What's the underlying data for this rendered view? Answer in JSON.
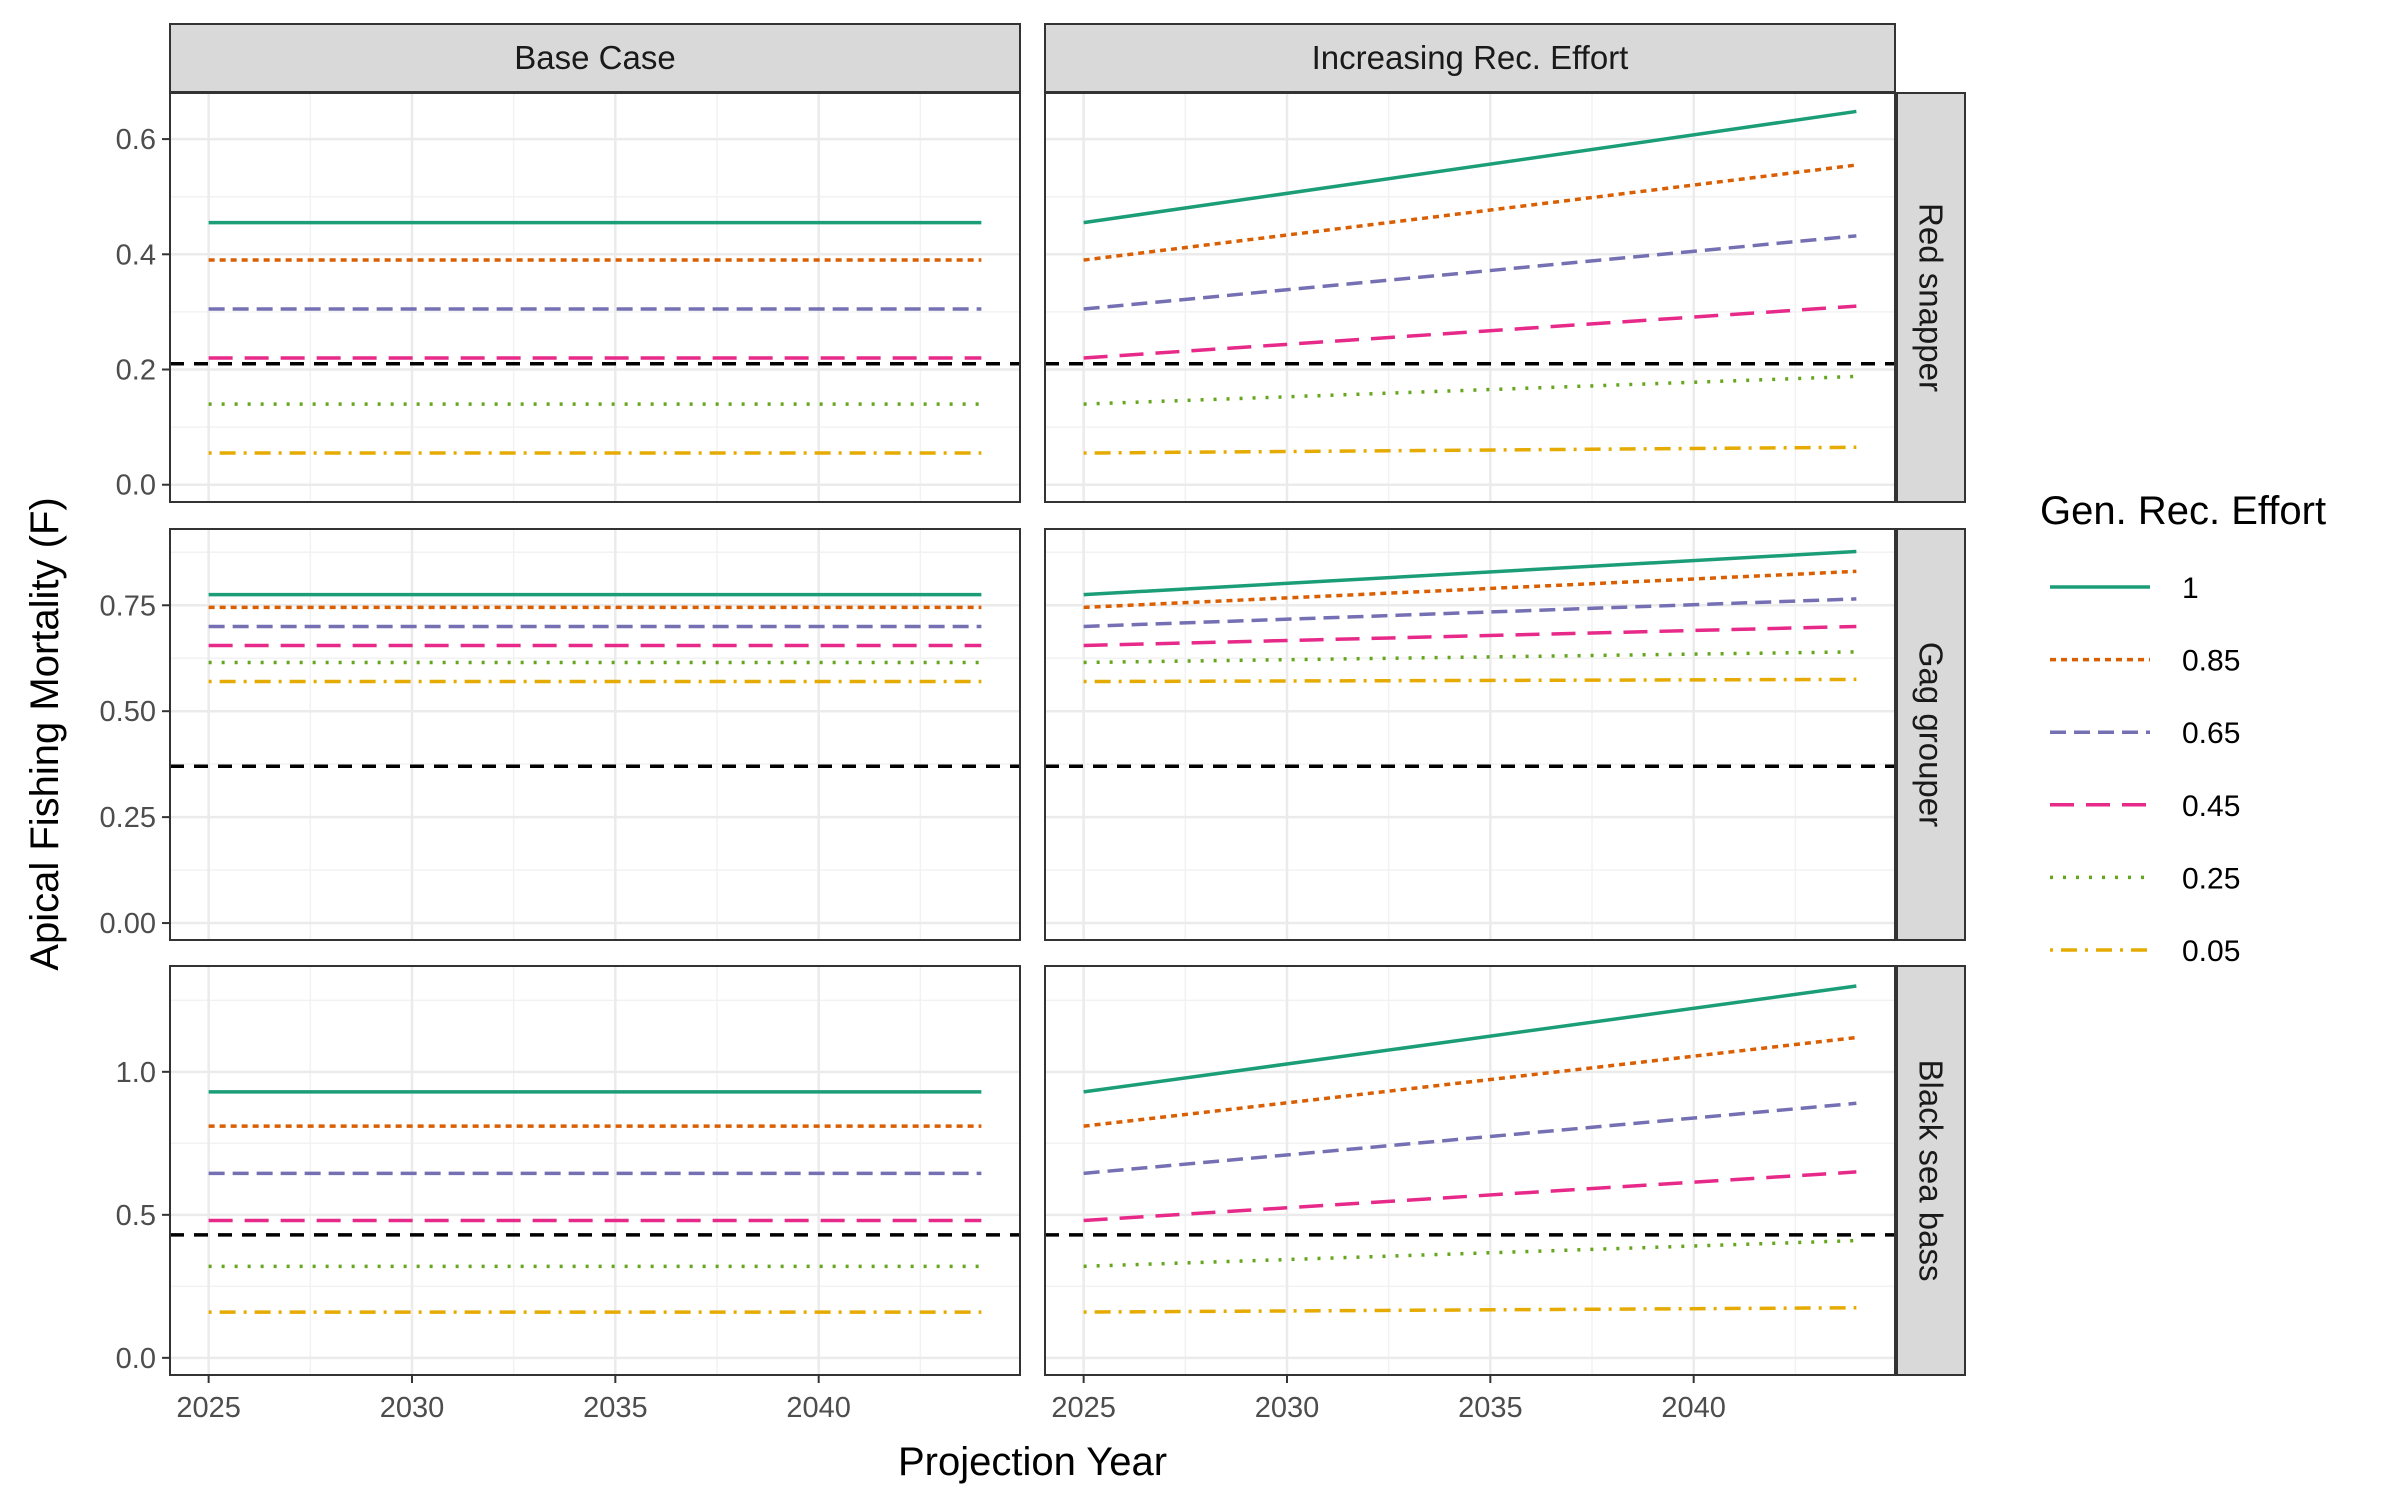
{
  "chart_data": {
    "type": "line",
    "xlabel": "Projection Year",
    "ylabel": "Apical Fishing Mortality (F)",
    "x_range": [
      2025,
      2044
    ],
    "x_ticks": [
      2025,
      2030,
      2035,
      2040
    ],
    "columns": [
      "Base Case",
      "Increasing Rec. Effort"
    ],
    "rows": [
      "Red snapper",
      "Gag grouper",
      "Black sea bass"
    ],
    "legend": {
      "title": "Gen. Rec. Effort",
      "placement": "right",
      "entries": [
        {
          "label": "1",
          "color": "#1b9e77",
          "dash": "solid"
        },
        {
          "label": "0.85",
          "color": "#d95f02",
          "dash": "dotted-short"
        },
        {
          "label": "0.65",
          "color": "#7570b3",
          "dash": "dashed"
        },
        {
          "label": "0.45",
          "color": "#e7298a",
          "dash": "longdash"
        },
        {
          "label": "0.25",
          "color": "#66a61e",
          "dash": "dotted"
        },
        {
          "label": "0.05",
          "color": "#e6ab02",
          "dash": "dotdash"
        }
      ]
    },
    "reference_line_color": "#000000",
    "panels_rows": [
      {
        "name": "Red snapper",
        "ylim": [
          -0.03,
          0.68
        ],
        "yticks": [
          0.0,
          0.2,
          0.4,
          0.6
        ],
        "yticklabels": [
          "0.0",
          "0.2",
          "0.4",
          "0.6"
        ],
        "reference": 0.21,
        "base_case": [
          0.455,
          0.39,
          0.305,
          0.22,
          0.14,
          0.055
        ],
        "increasing_start": [
          0.455,
          0.39,
          0.305,
          0.22,
          0.14,
          0.055
        ],
        "increasing_end": [
          0.648,
          0.555,
          0.432,
          0.31,
          0.188,
          0.065
        ]
      },
      {
        "name": "Gag grouper",
        "ylim": [
          -0.04,
          0.93
        ],
        "yticks": [
          0.0,
          0.25,
          0.5,
          0.75
        ],
        "yticklabels": [
          "0.00",
          "0.25",
          "0.50",
          "0.75"
        ],
        "reference": 0.37,
        "base_case": [
          0.775,
          0.745,
          0.7,
          0.655,
          0.615,
          0.57
        ],
        "increasing_start": [
          0.775,
          0.745,
          0.7,
          0.655,
          0.615,
          0.57
        ],
        "increasing_end": [
          0.877,
          0.83,
          0.765,
          0.7,
          0.64,
          0.575
        ]
      },
      {
        "name": "Black sea bass",
        "ylim": [
          -0.06,
          1.37
        ],
        "yticks": [
          0.0,
          0.5,
          1.0
        ],
        "yticklabels": [
          "0.0",
          "0.5",
          "1.0"
        ],
        "reference": 0.43,
        "base_case": [
          0.93,
          0.81,
          0.645,
          0.48,
          0.32,
          0.16
        ],
        "increasing_start": [
          0.93,
          0.81,
          0.645,
          0.48,
          0.32,
          0.16
        ],
        "increasing_end": [
          1.3,
          1.12,
          0.89,
          0.65,
          0.41,
          0.175
        ]
      }
    ]
  }
}
